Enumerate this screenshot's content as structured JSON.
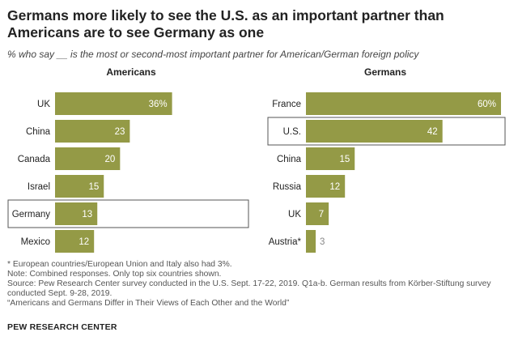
{
  "title": "Germans more likely to see the U.S. as an important partner than Americans are to see Germany as one",
  "subtitle": "% who say __ is the most or second-most important partner for American/German foreign policy",
  "chart_data": [
    {
      "type": "bar",
      "orientation": "horizontal",
      "title": "Americans",
      "categories": [
        "UK",
        "China",
        "Canada",
        "Israel",
        "Germany",
        "Mexico"
      ],
      "values": [
        36,
        23,
        20,
        15,
        13,
        12
      ],
      "labels": [
        "36%",
        "23",
        "20",
        "15",
        "13",
        "12"
      ],
      "highlighted": "Germany",
      "xlim": [
        0,
        60
      ]
    },
    {
      "type": "bar",
      "orientation": "horizontal",
      "title": "Germans",
      "categories": [
        "France",
        "U.S.",
        "China",
        "Russia",
        "UK",
        "Austria*"
      ],
      "values": [
        60,
        42,
        15,
        12,
        7,
        3
      ],
      "labels": [
        "60%",
        "42",
        "15",
        "12",
        "7",
        "3"
      ],
      "highlighted": "U.S.",
      "xlim": [
        0,
        60
      ]
    }
  ],
  "colors": {
    "bar": "#949a46",
    "label_inside": "#ffffff",
    "label_outside": "#888888",
    "highlight_border": "#555555"
  },
  "notes": [
    "* European countries/European Union and Italy also had 3%.",
    "Note: Combined responses. Only top six countries shown.",
    "Source: Pew Research Center survey conducted in the U.S. Sept. 17-22, 2019. Q1a-b. German results from Körber-Stiftung survey conducted Sept. 9-28, 2019.",
    "“Americans and Germans Differ in Their Views of Each Other and the World”"
  ],
  "brand": "PEW RESEARCH CENTER"
}
